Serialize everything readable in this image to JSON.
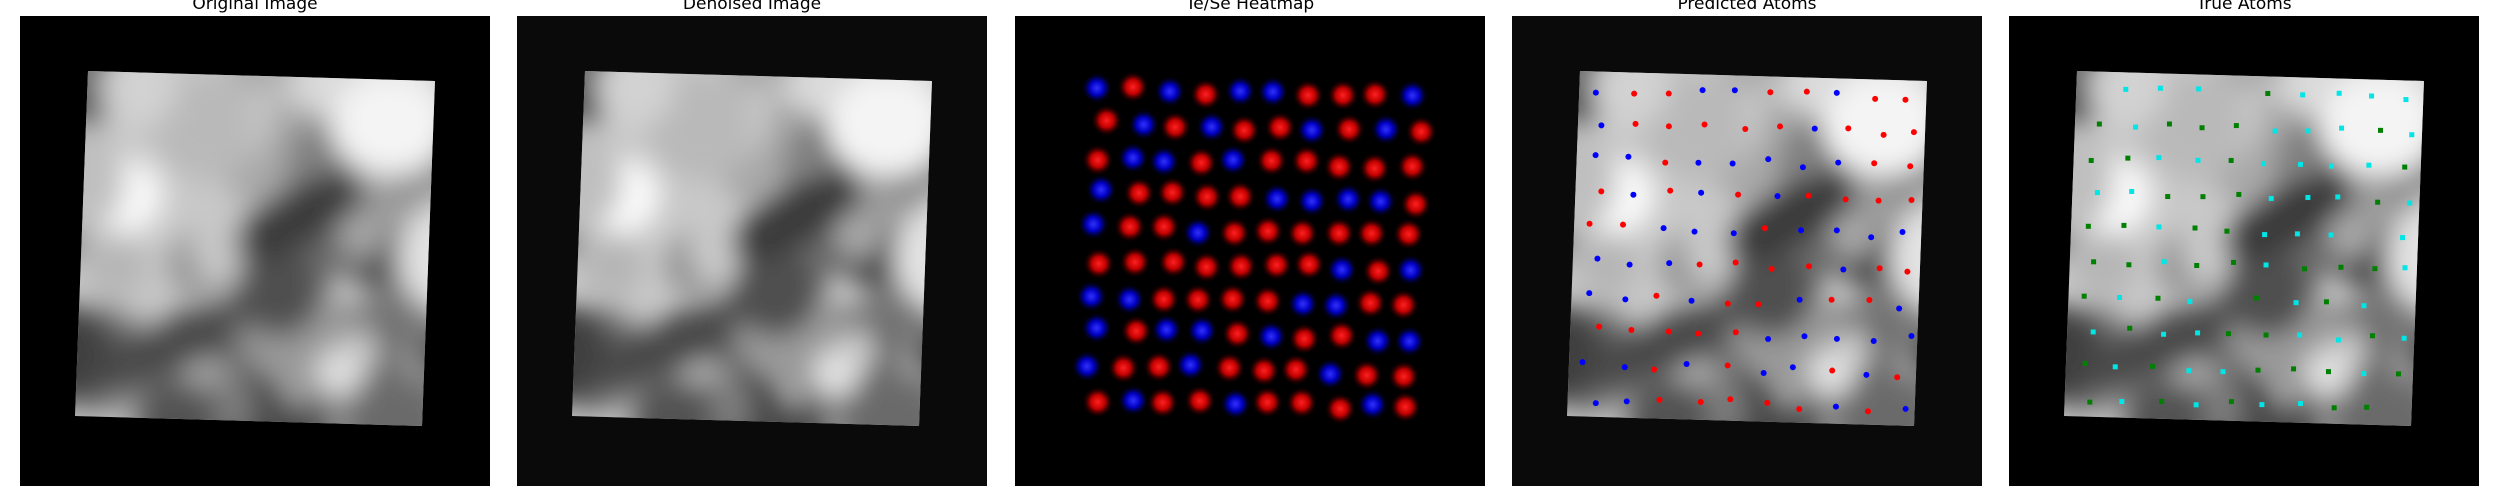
{
  "panels": [
    {
      "title": "Original Image",
      "kind": "gray"
    },
    {
      "title": "Denoised Image",
      "kind": "gray"
    },
    {
      "title": "Te/Se Heatmap",
      "kind": "heatmap"
    },
    {
      "title": "Predicted Atoms",
      "kind": "predicted"
    },
    {
      "title": "True Atoms",
      "kind": "true"
    }
  ],
  "colors": {
    "te": "#ff1a1a",
    "se": "#1a1aff",
    "pred_red": "#ff0000",
    "pred_blue": "#0000ff",
    "true_cyan": "#00e5e5",
    "true_green": "#008000"
  }
}
